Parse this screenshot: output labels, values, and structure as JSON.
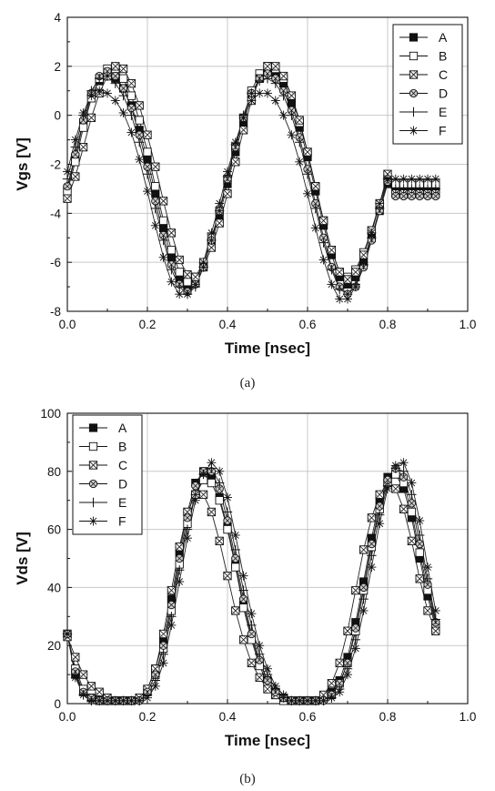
{
  "chart_data": [
    {
      "type": "line",
      "panel_caption": "(a)",
      "xlabel": "Time [nsec]",
      "ylabel": "Vgs [V]",
      "xlim": [
        0.0,
        1.0
      ],
      "ylim": [
        -8,
        4
      ],
      "xticks": [
        "0.0",
        "0.2",
        "0.4",
        "0.6",
        "0.8",
        "1.0"
      ],
      "yticks": [
        "-8",
        "-6",
        "-4",
        "-2",
        "0",
        "2",
        "4"
      ],
      "xtick_values": [
        0.0,
        0.2,
        0.4,
        0.6,
        0.8,
        1.0
      ],
      "ytick_values": [
        -8,
        -6,
        -4,
        -2,
        0,
        2,
        4
      ],
      "grid": true,
      "legend_position": "top-right",
      "x": [
        0.0,
        0.02,
        0.04,
        0.06,
        0.08,
        0.1,
        0.12,
        0.14,
        0.16,
        0.18,
        0.2,
        0.22,
        0.24,
        0.26,
        0.28,
        0.3,
        0.32,
        0.34,
        0.36,
        0.38,
        0.4,
        0.42,
        0.44,
        0.46,
        0.48,
        0.5,
        0.52,
        0.54,
        0.56,
        0.58,
        0.6,
        0.62,
        0.64,
        0.66,
        0.68,
        0.7,
        0.72,
        0.74,
        0.76,
        0.78,
        0.8,
        0.82,
        0.84,
        0.86,
        0.88,
        0.9,
        0.92
      ],
      "series": [
        {
          "name": "A",
          "marker": "filled-square",
          "values": [
            -3.0,
            -1.7,
            -0.3,
            0.8,
            1.4,
            1.6,
            1.5,
            1.1,
            0.4,
            -0.6,
            -1.8,
            -3.2,
            -4.6,
            -5.8,
            -6.7,
            -7.0,
            -6.8,
            -6.1,
            -5.2,
            -4.1,
            -2.8,
            -1.5,
            -0.3,
            0.8,
            1.5,
            1.8,
            1.7,
            1.3,
            0.5,
            -0.5,
            -1.7,
            -3.1,
            -4.5,
            -5.7,
            -6.6,
            -6.9,
            -6.6,
            -6.0,
            -5.0,
            -3.9,
            -2.8,
            -3.0,
            -3.0,
            -3.0,
            -3.0,
            -3.0,
            -3.0
          ]
        },
        {
          "name": "B",
          "marker": "open-square",
          "values": [
            -3.1,
            -1.9,
            -0.5,
            0.7,
            1.5,
            1.9,
            1.9,
            1.5,
            0.8,
            -0.2,
            -1.5,
            -2.9,
            -4.3,
            -5.5,
            -6.4,
            -6.8,
            -6.6,
            -6.0,
            -5.0,
            -3.9,
            -2.6,
            -1.3,
            -0.1,
            1.0,
            1.7,
            2.0,
            1.9,
            1.5,
            0.8,
            -0.3,
            -1.5,
            -2.9,
            -4.3,
            -5.5,
            -6.4,
            -6.6,
            -6.3,
            -5.6,
            -4.7,
            -3.6,
            -2.6,
            -2.8,
            -2.8,
            -2.8,
            -2.8,
            -2.8,
            -2.8
          ]
        },
        {
          "name": "C",
          "marker": "box-x",
          "values": [
            -3.4,
            -2.5,
            -1.3,
            -0.1,
            0.9,
            1.6,
            2.0,
            1.9,
            1.3,
            0.4,
            -0.8,
            -2.1,
            -3.5,
            -4.8,
            -5.9,
            -6.5,
            -6.6,
            -6.2,
            -5.4,
            -4.4,
            -3.2,
            -1.9,
            -0.6,
            0.6,
            1.5,
            2.0,
            2.0,
            1.6,
            0.8,
            -0.2,
            -1.5,
            -2.9,
            -4.3,
            -5.5,
            -6.4,
            -6.7,
            -6.4,
            -5.7,
            -4.7,
            -3.6,
            -2.4,
            -3.2,
            -3.2,
            -3.2,
            -3.2,
            -3.2,
            -3.2
          ]
        },
        {
          "name": "D",
          "marker": "hatched-circle",
          "values": [
            -2.9,
            -1.6,
            -0.2,
            0.9,
            1.6,
            1.8,
            1.6,
            1.1,
            0.3,
            -0.8,
            -2.1,
            -3.5,
            -4.9,
            -6.1,
            -6.9,
            -7.2,
            -6.9,
            -6.2,
            -5.1,
            -3.9,
            -2.6,
            -1.3,
            -0.1,
            0.9,
            1.5,
            1.7,
            1.5,
            1.0,
            0.2,
            -0.9,
            -2.2,
            -3.6,
            -5.0,
            -6.2,
            -7.0,
            -7.3,
            -7.0,
            -6.2,
            -5.1,
            -3.9,
            -2.7,
            -3.3,
            -3.3,
            -3.3,
            -3.3,
            -3.3,
            -3.3
          ]
        },
        {
          "name": "E",
          "marker": "plus",
          "values": [
            -2.6,
            -1.3,
            0.0,
            1.0,
            1.5,
            1.6,
            1.3,
            0.8,
            0.0,
            -1.1,
            -2.4,
            -3.8,
            -5.1,
            -6.3,
            -7.0,
            -7.3,
            -7.0,
            -6.2,
            -5.1,
            -3.9,
            -2.5,
            -1.2,
            0.0,
            0.9,
            1.4,
            1.5,
            1.3,
            0.8,
            0.0,
            -1.1,
            -2.4,
            -3.8,
            -5.2,
            -6.3,
            -7.1,
            -7.3,
            -6.9,
            -6.1,
            -5.0,
            -3.8,
            -2.6,
            -3.0,
            -3.0,
            -3.0,
            -3.0,
            -3.0,
            -3.0
          ]
        },
        {
          "name": "F",
          "marker": "star",
          "values": [
            -2.3,
            -1.0,
            0.1,
            0.8,
            1.0,
            0.9,
            0.6,
            0.1,
            -0.7,
            -1.8,
            -3.1,
            -4.5,
            -5.8,
            -6.8,
            -7.3,
            -7.3,
            -6.9,
            -6.0,
            -4.8,
            -3.6,
            -2.3,
            -1.1,
            -0.1,
            0.6,
            0.9,
            0.9,
            0.6,
            0.0,
            -0.8,
            -1.9,
            -3.2,
            -4.6,
            -5.9,
            -6.9,
            -7.5,
            -7.5,
            -7.0,
            -6.0,
            -4.8,
            -3.6,
            -2.6,
            -2.6,
            -2.6,
            -2.6,
            -2.6,
            -2.6,
            -2.6
          ]
        }
      ]
    },
    {
      "type": "line",
      "panel_caption": "(b)",
      "xlabel": "Time [nsec]",
      "ylabel": "Vds [V]",
      "xlim": [
        0.0,
        1.0
      ],
      "ylim": [
        0,
        100
      ],
      "xticks": [
        "0.0",
        "0.2",
        "0.4",
        "0.6",
        "0.8",
        "1.0"
      ],
      "yticks": [
        "0",
        "20",
        "40",
        "60",
        "80",
        "100"
      ],
      "xtick_values": [
        0.0,
        0.2,
        0.4,
        0.6,
        0.8,
        1.0
      ],
      "ytick_values": [
        0,
        20,
        40,
        60,
        80,
        100
      ],
      "grid": true,
      "legend_position": "top-left",
      "x": [
        0.0,
        0.02,
        0.04,
        0.06,
        0.08,
        0.1,
        0.12,
        0.14,
        0.16,
        0.18,
        0.2,
        0.22,
        0.24,
        0.26,
        0.28,
        0.3,
        0.32,
        0.34,
        0.36,
        0.38,
        0.4,
        0.42,
        0.44,
        0.46,
        0.48,
        0.5,
        0.52,
        0.54,
        0.56,
        0.58,
        0.6,
        0.62,
        0.64,
        0.66,
        0.68,
        0.7,
        0.72,
        0.74,
        0.76,
        0.78,
        0.8,
        0.82,
        0.84,
        0.86,
        0.88,
        0.9,
        0.92
      ],
      "series": [
        {
          "name": "A",
          "marker": "filled-square",
          "values": [
            24,
            10,
            4,
            2,
            1,
            1,
            1,
            1,
            1,
            2,
            5,
            12,
            22,
            36,
            52,
            66,
            76,
            80,
            78,
            71,
            61,
            48,
            34,
            23,
            14,
            8,
            4,
            2,
            1,
            1,
            1,
            1,
            2,
            4,
            8,
            16,
            28,
            42,
            57,
            70,
            78,
            79,
            74,
            64,
            50,
            37,
            26
          ]
        },
        {
          "name": "B",
          "marker": "open-square",
          "values": [
            24,
            12,
            5,
            2,
            1,
            1,
            1,
            1,
            1,
            2,
            4,
            10,
            19,
            32,
            48,
            62,
            72,
            77,
            76,
            70,
            60,
            47,
            33,
            22,
            13,
            7,
            3,
            1,
            1,
            1,
            1,
            1,
            2,
            3,
            7,
            14,
            25,
            39,
            54,
            67,
            76,
            79,
            76,
            66,
            52,
            39,
            27
          ]
        },
        {
          "name": "C",
          "marker": "box-x",
          "values": [
            23,
            16,
            10,
            6,
            4,
            2,
            1,
            1,
            1,
            2,
            5,
            12,
            24,
            39,
            54,
            66,
            72,
            72,
            66,
            56,
            44,
            32,
            22,
            14,
            9,
            5,
            3,
            2,
            1,
            1,
            1,
            1,
            3,
            7,
            14,
            25,
            39,
            53,
            64,
            72,
            76,
            74,
            67,
            56,
            43,
            32,
            25
          ]
        },
        {
          "name": "D",
          "marker": "hatched-circle",
          "values": [
            24,
            11,
            4,
            2,
            1,
            1,
            1,
            1,
            1,
            1,
            4,
            10,
            20,
            34,
            50,
            64,
            75,
            80,
            80,
            74,
            63,
            50,
            36,
            24,
            15,
            8,
            4,
            2,
            1,
            1,
            1,
            1,
            1,
            3,
            7,
            14,
            26,
            40,
            55,
            68,
            77,
            81,
            78,
            69,
            55,
            41,
            28
          ]
        },
        {
          "name": "E",
          "marker": "plus",
          "values": [
            24,
            10,
            3,
            1,
            1,
            1,
            1,
            1,
            1,
            1,
            3,
            8,
            17,
            30,
            46,
            60,
            72,
            79,
            81,
            76,
            66,
            53,
            39,
            27,
            17,
            10,
            5,
            2,
            1,
            1,
            1,
            1,
            1,
            2,
            5,
            12,
            22,
            36,
            51,
            65,
            75,
            81,
            80,
            72,
            58,
            43,
            29
          ]
        },
        {
          "name": "F",
          "marker": "star",
          "values": [
            24,
            9,
            3,
            1,
            1,
            1,
            1,
            1,
            1,
            1,
            2,
            6,
            14,
            27,
            42,
            57,
            70,
            79,
            83,
            80,
            71,
            58,
            44,
            31,
            20,
            12,
            6,
            3,
            1,
            1,
            1,
            1,
            1,
            2,
            4,
            10,
            19,
            32,
            47,
            62,
            74,
            82,
            83,
            76,
            63,
            47,
            32
          ]
        }
      ]
    }
  ]
}
